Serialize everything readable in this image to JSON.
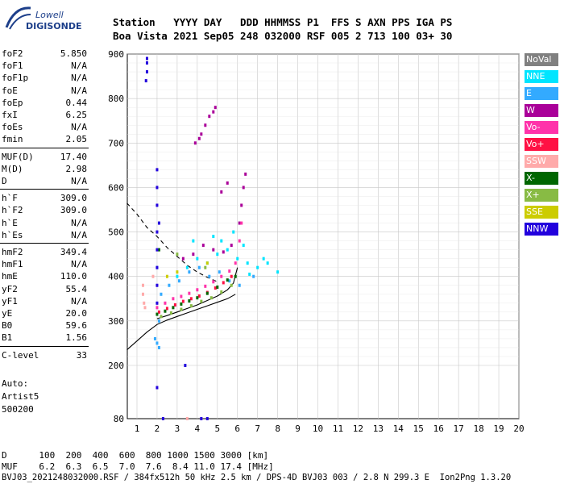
{
  "logo": {
    "top": "Lowell",
    "bottom": "DIGISONDE"
  },
  "header": {
    "line1": "Station   YYYY DAY   DDD HHMMSS P1  FFS S AXN PPS IGA PS",
    "line2": "Boa Vista 2021 Sep05 248 032000 RSF 005 2 713 100 03+ 30"
  },
  "params": [
    {
      "name": "foF2",
      "value": "5.850"
    },
    {
      "name": "foF1",
      "value": "N/A"
    },
    {
      "name": "foF1p",
      "value": "N/A"
    },
    {
      "name": "foE",
      "value": "N/A"
    },
    {
      "name": "foEp",
      "value": "0.44"
    },
    {
      "name": "fxI",
      "value": "6.25"
    },
    {
      "name": "foEs",
      "value": "N/A"
    },
    {
      "name": "fmin",
      "value": "2.05"
    },
    {
      "name": "MUF(D)",
      "value": "17.40"
    },
    {
      "name": "M(D)",
      "value": "2.98"
    },
    {
      "name": "D",
      "value": "N/A"
    },
    {
      "name": "h`F",
      "value": "309.0"
    },
    {
      "name": "h`F2",
      "value": "309.0"
    },
    {
      "name": "h`E",
      "value": "N/A"
    },
    {
      "name": "h`Es",
      "value": "N/A"
    },
    {
      "name": "hmF2",
      "value": "349.4"
    },
    {
      "name": "hmF1",
      "value": "N/A"
    },
    {
      "name": "hmE",
      "value": "110.0"
    },
    {
      "name": "yF2",
      "value": "55.4"
    },
    {
      "name": "yF1",
      "value": "N/A"
    },
    {
      "name": "yE",
      "value": "20.0"
    },
    {
      "name": "B0",
      "value": "59.6"
    },
    {
      "name": "B1",
      "value": "1.56"
    },
    {
      "name": "C-level",
      "value": "33"
    }
  ],
  "auto": {
    "line1": "Auto:",
    "line2": "Artist5",
    "line3": "500200"
  },
  "footer": {
    "d_line": "D      100  200  400  600  800 1000 1500 3000 [km]",
    "muf_line": "MUF    6.2  6.3  6.5  7.0  7.6  8.4 11.0 17.4 [MHz]",
    "file_line": "BVJ03_2021248032000.RSF / 384fx512h 50 kHz 2.5 km / DPS-4D BVJ03 003 / 2.8 N 299.3 E  Ion2Png 1.3.20"
  },
  "legend": [
    {
      "label": "NoVal",
      "color": "#808080"
    },
    {
      "label": "NNE",
      "color": "#00e5ff"
    },
    {
      "label": "E",
      "color": "#33aaff"
    },
    {
      "label": "W",
      "color": "#aa0099"
    },
    {
      "label": "Vo-",
      "color": "#ff33aa"
    },
    {
      "label": "Vo+",
      "color": "#ff1144"
    },
    {
      "label": "SSW",
      "color": "#ffaaaa"
    },
    {
      "label": "X-",
      "color": "#006600"
    },
    {
      "label": "X+",
      "color": "#88bb44"
    },
    {
      "label": "SSE",
      "color": "#cccc00"
    },
    {
      "label": "NNW",
      "color": "#2200dd"
    }
  ],
  "chart_data": {
    "type": "scatter",
    "title": "",
    "xlabel": "",
    "ylabel": "",
    "xlim": [
      0.5,
      20
    ],
    "ylim": [
      80,
      900
    ],
    "xticks": [
      1,
      2,
      3,
      4,
      5,
      6,
      7,
      8,
      9,
      10,
      11,
      12,
      13,
      14,
      15,
      16,
      17,
      18,
      19,
      20
    ],
    "yticks": [
      80,
      200,
      300,
      400,
      500,
      600,
      700,
      800,
      900
    ],
    "grid": true,
    "series": [
      {
        "name": "NNE",
        "color": "#00e5ff",
        "points": [
          [
            3.0,
            400
          ],
          [
            3.5,
            420
          ],
          [
            4.0,
            440
          ],
          [
            4.5,
            430
          ],
          [
            5.0,
            450
          ],
          [
            5.5,
            460
          ],
          [
            6.0,
            440
          ],
          [
            6.5,
            430
          ],
          [
            7.0,
            420
          ],
          [
            7.5,
            430
          ],
          [
            8.0,
            410
          ],
          [
            6.3,
            470
          ],
          [
            5.8,
            500
          ],
          [
            5.2,
            480
          ],
          [
            4.8,
            490
          ],
          [
            3.8,
            480
          ],
          [
            6.6,
            405
          ],
          [
            7.3,
            440
          ]
        ]
      },
      {
        "name": "E",
        "color": "#33aaff",
        "points": [
          [
            2.2,
            360
          ],
          [
            2.6,
            380
          ],
          [
            3.1,
            390
          ],
          [
            3.6,
            410
          ],
          [
            4.1,
            420
          ],
          [
            4.6,
            400
          ],
          [
            5.1,
            410
          ],
          [
            5.6,
            390
          ],
          [
            6.1,
            380
          ],
          [
            6.8,
            400
          ],
          [
            2.0,
            420
          ],
          [
            2.1,
            300
          ],
          [
            1.9,
            260
          ],
          [
            2.0,
            250
          ],
          [
            2.1,
            240
          ]
        ]
      },
      {
        "name": "W",
        "color": "#aa0099",
        "points": [
          [
            3.3,
            440
          ],
          [
            3.8,
            450
          ],
          [
            4.3,
            470
          ],
          [
            4.8,
            460
          ],
          [
            5.3,
            455
          ],
          [
            5.7,
            470
          ],
          [
            6.1,
            520
          ],
          [
            6.2,
            560
          ],
          [
            6.3,
            600
          ],
          [
            6.4,
            630
          ],
          [
            4.2,
            720
          ],
          [
            4.4,
            740
          ],
          [
            4.6,
            760
          ],
          [
            4.8,
            770
          ],
          [
            4.9,
            780
          ],
          [
            3.9,
            700
          ],
          [
            4.1,
            710
          ],
          [
            5.5,
            610
          ],
          [
            5.2,
            590
          ]
        ]
      },
      {
        "name": "Vo-",
        "color": "#ff33aa",
        "points": [
          [
            2.0,
            330
          ],
          [
            2.4,
            340
          ],
          [
            2.8,
            350
          ],
          [
            3.2,
            355
          ],
          [
            3.6,
            362
          ],
          [
            4.0,
            370
          ],
          [
            4.4,
            378
          ],
          [
            4.8,
            388
          ],
          [
            5.2,
            400
          ],
          [
            5.6,
            412
          ],
          [
            5.9,
            430
          ],
          [
            6.1,
            480
          ],
          [
            6.2,
            520
          ]
        ]
      },
      {
        "name": "Vo+",
        "color": "#ff1144",
        "points": [
          [
            2.1,
            320
          ],
          [
            2.5,
            328
          ],
          [
            2.9,
            336
          ],
          [
            3.3,
            344
          ],
          [
            3.7,
            350
          ],
          [
            4.1,
            356
          ],
          [
            4.5,
            364
          ],
          [
            4.9,
            374
          ],
          [
            5.3,
            386
          ],
          [
            5.7,
            400
          ]
        ]
      },
      {
        "name": "SSW",
        "color": "#ffaaaa",
        "points": [
          [
            1.3,
            380
          ],
          [
            1.3,
            360
          ],
          [
            1.35,
            340
          ],
          [
            1.4,
            330
          ],
          [
            2.3,
            80
          ],
          [
            3.5,
            80
          ],
          [
            4.2,
            80
          ],
          [
            1.8,
            400
          ]
        ]
      },
      {
        "name": "X-",
        "color": "#006600",
        "points": [
          [
            2.0,
            315
          ],
          [
            2.4,
            322
          ],
          [
            2.8,
            330
          ],
          [
            3.2,
            338
          ],
          [
            3.6,
            345
          ],
          [
            4.0,
            352
          ],
          [
            4.5,
            362
          ],
          [
            5.0,
            376
          ],
          [
            5.5,
            392
          ],
          [
            2.1,
            460
          ],
          [
            5.9,
            400
          ]
        ]
      },
      {
        "name": "X+",
        "color": "#88bb44",
        "points": [
          [
            2.2,
            310
          ],
          [
            2.7,
            318
          ],
          [
            3.2,
            326
          ],
          [
            3.7,
            334
          ],
          [
            4.2,
            344
          ],
          [
            4.7,
            352
          ],
          [
            5.2,
            365
          ],
          [
            5.7,
            380
          ],
          [
            3.0,
            450
          ],
          [
            4.4,
            420
          ]
        ]
      },
      {
        "name": "SSE",
        "color": "#cccc00",
        "points": [
          [
            2.5,
            400
          ],
          [
            3.0,
            410
          ],
          [
            4.5,
            430
          ]
        ]
      },
      {
        "name": "NNW",
        "color": "#2200dd",
        "points": [
          [
            1.5,
            880
          ],
          [
            1.5,
            860
          ],
          [
            1.45,
            840
          ],
          [
            1.5,
            890
          ],
          [
            2.0,
            640
          ],
          [
            2.0,
            600
          ],
          [
            2.0,
            560
          ],
          [
            2.0,
            500
          ],
          [
            2.0,
            460
          ],
          [
            2.0,
            420
          ],
          [
            2.0,
            380
          ],
          [
            2.0,
            340
          ],
          [
            2.0,
            150
          ],
          [
            2.3,
            80
          ],
          [
            3.4,
            200
          ],
          [
            4.2,
            80
          ],
          [
            4.5,
            80
          ],
          [
            2.1,
            520
          ]
        ]
      }
    ],
    "curves": [
      {
        "points": [
          [
            0.5,
            565
          ],
          [
            1.0,
            540
          ],
          [
            1.5,
            510
          ],
          [
            2.0,
            490
          ],
          [
            2.5,
            465
          ],
          [
            3.0,
            445
          ],
          [
            3.5,
            425
          ],
          [
            4.0,
            410
          ],
          [
            4.5,
            398
          ],
          [
            5.0,
            388
          ]
        ],
        "style": "dashed"
      },
      {
        "points": [
          [
            0.5,
            235
          ],
          [
            1.0,
            255
          ],
          [
            1.5,
            275
          ],
          [
            2.0,
            292
          ],
          [
            2.5,
            302
          ],
          [
            3.0,
            310
          ],
          [
            3.5,
            318
          ],
          [
            4.0,
            326
          ],
          [
            4.5,
            334
          ],
          [
            5.0,
            342
          ],
          [
            5.5,
            350
          ],
          [
            5.9,
            360
          ]
        ],
        "style": "solid"
      },
      {
        "points": [
          [
            2.0,
            305
          ],
          [
            2.5,
            312
          ],
          [
            3.0,
            320
          ],
          [
            3.5,
            328
          ],
          [
            4.0,
            336
          ],
          [
            4.5,
            346
          ],
          [
            5.0,
            356
          ],
          [
            5.5,
            370
          ],
          [
            5.8,
            385
          ],
          [
            6.0,
            420
          ]
        ],
        "style": "solid"
      }
    ]
  }
}
